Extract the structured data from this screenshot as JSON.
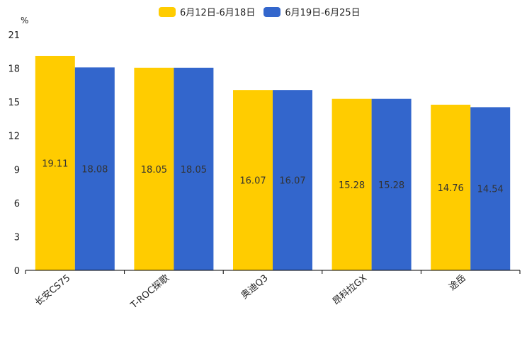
{
  "chart_data": {
    "type": "bar",
    "title": "",
    "xlabel": "",
    "ylabel": "%",
    "ylim": [
      0,
      21
    ],
    "yticks": [
      0,
      3,
      6,
      9,
      12,
      15,
      18,
      21
    ],
    "categories": [
      "长安CS75",
      "T-ROC探歌",
      "奥迪Q3",
      "昂科拉GX",
      "途岳"
    ],
    "series": [
      {
        "name": "6月12日-6月18日",
        "color": "#FFCC00",
        "values": [
          19.11,
          18.05,
          16.07,
          15.28,
          14.76
        ]
      },
      {
        "name": "6月19日-6月25日",
        "color": "#3366CC",
        "values": [
          18.08,
          18.05,
          16.07,
          15.28,
          14.54
        ]
      }
    ],
    "legend_position": "top-center",
    "grid": false
  }
}
